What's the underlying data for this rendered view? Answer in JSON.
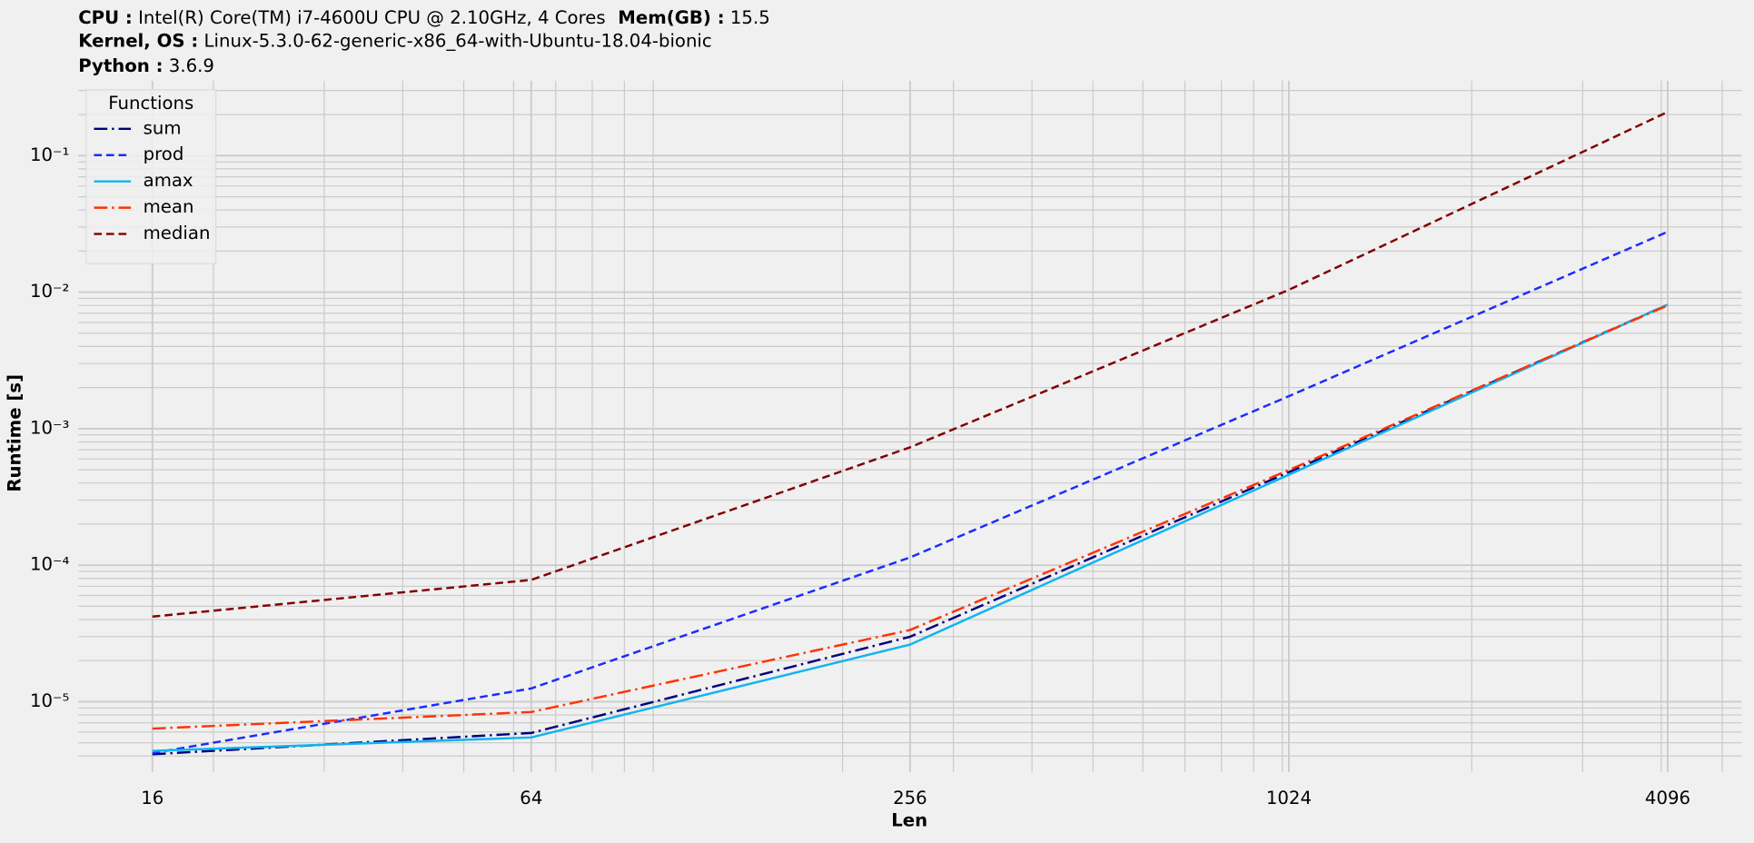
{
  "chart_data": {
    "type": "line",
    "header": [
      [
        {
          "label": "CPU :",
          "value": "Intel(R) Core(TM) i7-4600U CPU @ 2.10GHz, 4 Cores"
        },
        {
          "label": "Mem(GB) :",
          "value": "15.5"
        }
      ],
      [
        {
          "label": "Kernel, OS :",
          "value": "Linux-5.3.0-62-generic-x86_64-with-Ubuntu-18.04-bionic"
        }
      ],
      [
        {
          "label": "Python :",
          "value": "3.6.9"
        }
      ]
    ],
    "xlabel": "Len",
    "ylabel": "Runtime [s]",
    "x": [
      16,
      64,
      256,
      1024,
      4096
    ],
    "series": [
      {
        "name": "sum",
        "color": "#000080",
        "linestyle": "-.",
        "values": [
          4.12e-06,
          5.9e-06,
          2.99e-05,
          0.00048,
          0.0081
        ]
      },
      {
        "name": "prod",
        "color": "#1a2cff",
        "linestyle": "--",
        "values": [
          4.2e-06,
          1.25e-05,
          0.000114,
          0.00173,
          0.0277
        ]
      },
      {
        "name": "amax",
        "color": "#10b4f0",
        "linestyle": "-",
        "values": [
          4.36e-06,
          5.47e-06,
          2.62e-05,
          0.00046,
          0.0081
        ]
      },
      {
        "name": "mean",
        "color": "#ff3300",
        "linestyle": "-.",
        "values": [
          6.35e-06,
          8.4e-06,
          3.35e-05,
          0.000498,
          0.008
        ]
      },
      {
        "name": "median",
        "color": "#800000",
        "linestyle": "--",
        "values": [
          4.2e-05,
          7.8e-05,
          0.00073,
          0.0104,
          0.209
        ]
      }
    ],
    "legend_title": "Functions",
    "legend": "upper left",
    "xscale": "log",
    "yscale": "log",
    "grid": true,
    "xlim": [
      12.2,
      5370
    ],
    "ylim": [
      3.05e-06,
      0.354
    ],
    "xticks": [
      16,
      64,
      256,
      1024,
      4096
    ],
    "yticks": [
      {
        "value": 1e-05,
        "label": "10⁻⁵"
      },
      {
        "value": 0.0001,
        "label": "10⁻⁴"
      },
      {
        "value": 0.001,
        "label": "10⁻³"
      },
      {
        "value": 0.01,
        "label": "10⁻²"
      },
      {
        "value": 0.1,
        "label": "10⁻¹"
      }
    ]
  }
}
